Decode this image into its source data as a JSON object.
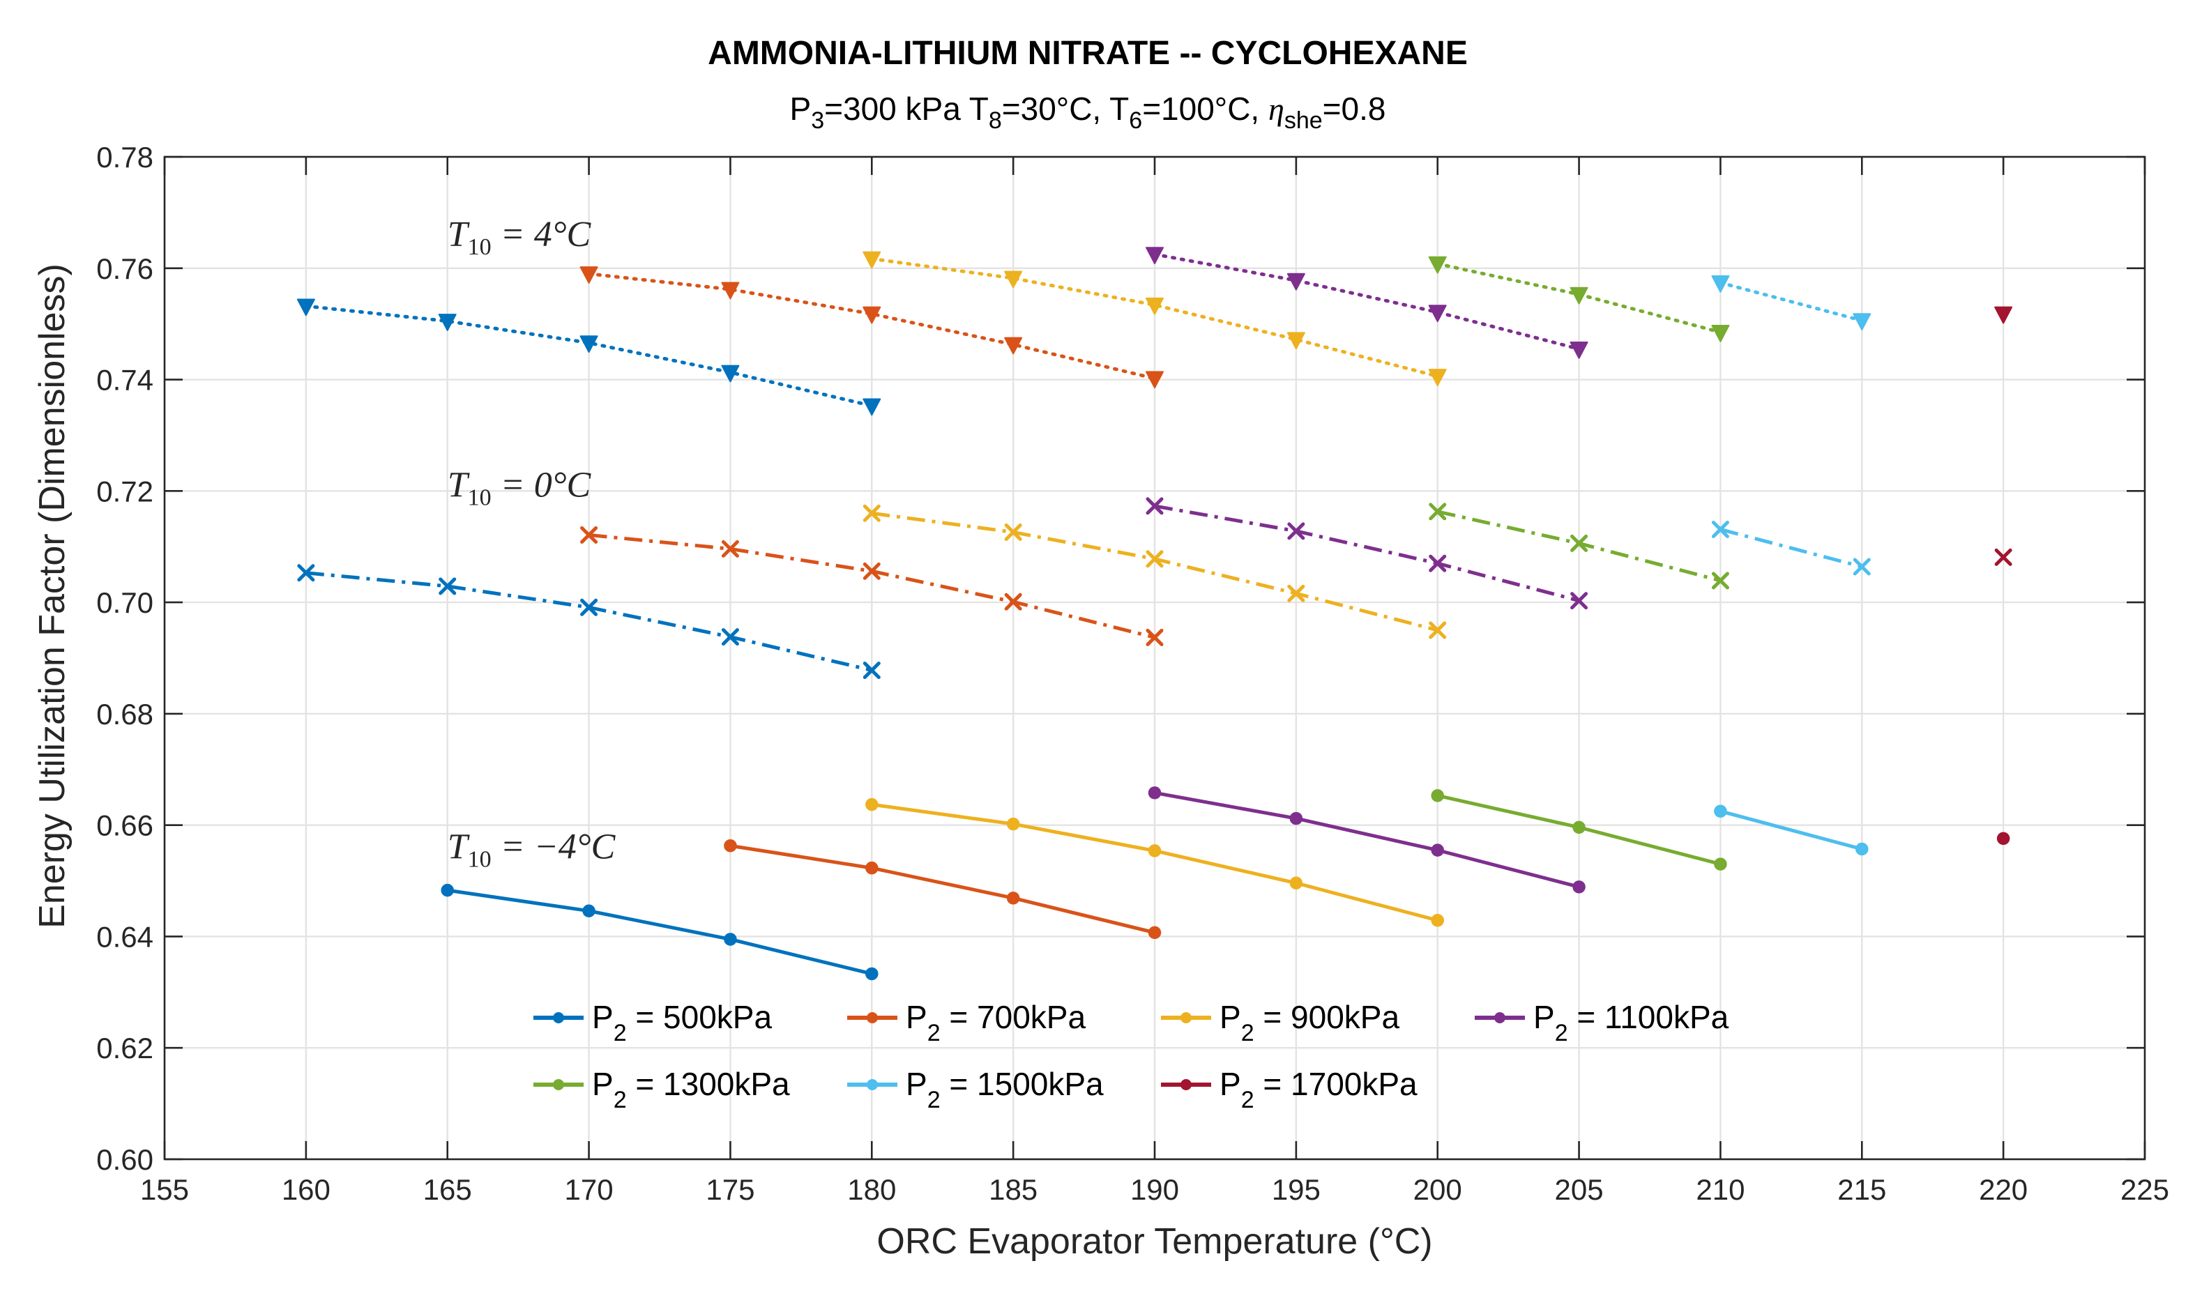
{
  "chart_data": {
    "type": "line",
    "title": "AMMONIA-LITHIUM NITRATE -- CYCLOHEXANE",
    "subtitle": {
      "p3_main": "P",
      "p3_sub": "3",
      "p3_rest": "=300 kPa T",
      "t8_sub": "8",
      "t8_rest": "=30°C, T",
      "t6_sub": "6",
      "t6_rest": "=100°C, ",
      "eta": "η",
      "eta_sub": "she",
      "eta_rest": "=0.8"
    },
    "xlabel": "ORC Evaporator Temperature (°C)",
    "ylabel": "Energy Utilization Factor (Dimensionless)",
    "xlim": [
      155,
      225
    ],
    "ylim": [
      0.6,
      0.78
    ],
    "xticks": [
      "155",
      "160",
      "165",
      "170",
      "175",
      "180",
      "185",
      "190",
      "195",
      "200",
      "205",
      "210",
      "215",
      "220",
      "225"
    ],
    "yticks": [
      "0.60",
      "0.62",
      "0.64",
      "0.66",
      "0.68",
      "0.70",
      "0.72",
      "0.74",
      "0.76",
      "0.78"
    ],
    "grid": true,
    "legend_placement": "bottom-center",
    "annotations": [
      {
        "main": "T",
        "sub": "10",
        "rest": " = 4°C",
        "x": 165,
        "y": 0.764
      },
      {
        "main": "T",
        "sub": "10",
        "rest": " = 0°C",
        "x": 165,
        "y": 0.719
      },
      {
        "main": "T",
        "sub": "10",
        "rest": " = −4°C",
        "x": 165,
        "y": 0.654
      }
    ],
    "series": [
      {
        "name": "P2 = 500kPa",
        "label_main": "P",
        "label_sub": "2",
        "label_rest": " = 500kPa",
        "color": "#0072BD",
        "curves": {
          "t10_4": {
            "x": [
              160,
              165,
              170,
              175,
              180
            ],
            "y": [
              0.7532,
              0.7505,
              0.7466,
              0.7413,
              0.7353
            ]
          },
          "t10_0": {
            "x": [
              160,
              165,
              170,
              175,
              180
            ],
            "y": [
              0.7053,
              0.7029,
              0.6991,
              0.6938,
              0.6878
            ]
          },
          "t10_m4": {
            "x": [
              165,
              170,
              175,
              180
            ],
            "y": [
              0.6483,
              0.6446,
              0.6395,
              0.6333
            ]
          }
        }
      },
      {
        "name": "P2 = 700kPa",
        "label_main": "P",
        "label_sub": "2",
        "label_rest": " = 700kPa",
        "color": "#D95319",
        "curves": {
          "t10_4": {
            "x": [
              170,
              175,
              180,
              185,
              190
            ],
            "y": [
              0.759,
              0.7562,
              0.7518,
              0.7463,
              0.7402
            ]
          },
          "t10_0": {
            "x": [
              170,
              175,
              180,
              185,
              190
            ],
            "y": [
              0.7121,
              0.7096,
              0.7056,
              0.7001,
              0.6937
            ]
          },
          "t10_m4": {
            "x": [
              175,
              180,
              185,
              190
            ],
            "y": [
              0.6563,
              0.6523,
              0.6469,
              0.6407
            ]
          }
        }
      },
      {
        "name": "P2 = 900kPa",
        "label_main": "P",
        "label_sub": "2",
        "label_rest": " = 900kPa",
        "color": "#EDB120",
        "curves": {
          "t10_4": {
            "x": [
              180,
              185,
              190,
              195,
              200
            ],
            "y": [
              0.7617,
              0.7582,
              0.7534,
              0.7472,
              0.7406
            ]
          },
          "t10_0": {
            "x": [
              180,
              185,
              190,
              195,
              200
            ],
            "y": [
              0.716,
              0.7126,
              0.7078,
              0.7016,
              0.695
            ]
          },
          "t10_m4": {
            "x": [
              180,
              185,
              190,
              195,
              200
            ],
            "y": [
              0.6637,
              0.6602,
              0.6554,
              0.6496,
              0.6429
            ]
          }
        }
      },
      {
        "name": "P2 = 1100kPa",
        "label_main": "P",
        "label_sub": "2",
        "label_rest": " = 1100kPa",
        "color": "#7E2F8E",
        "curves": {
          "t10_4": {
            "x": [
              190,
              195,
              200,
              205
            ],
            "y": [
              0.7625,
              0.7578,
              0.7521,
              0.7455
            ]
          },
          "t10_0": {
            "x": [
              190,
              195,
              200,
              205
            ],
            "y": [
              0.7173,
              0.7128,
              0.707,
              0.7003
            ]
          },
          "t10_m4": {
            "x": [
              190,
              195,
              200,
              205
            ],
            "y": [
              0.6658,
              0.6612,
              0.6555,
              0.6489
            ]
          }
        }
      },
      {
        "name": "P2 = 1300kPa",
        "label_main": "P",
        "label_sub": "2",
        "label_rest": " = 1300kPa",
        "color": "#77AC30",
        "curves": {
          "t10_4": {
            "x": [
              200,
              205,
              210
            ],
            "y": [
              0.7608,
              0.7553,
              0.7485
            ]
          },
          "t10_0": {
            "x": [
              200,
              205,
              210
            ],
            "y": [
              0.7163,
              0.7106,
              0.7039
            ]
          },
          "t10_m4": {
            "x": [
              200,
              205,
              210
            ],
            "y": [
              0.6653,
              0.6596,
              0.653
            ]
          }
        }
      },
      {
        "name": "P2 = 1500kPa",
        "label_main": "P",
        "label_sub": "2",
        "label_rest": " = 1500kPa",
        "color": "#4DBEEE",
        "curves": {
          "t10_4": {
            "x": [
              210,
              215
            ],
            "y": [
              0.7574,
              0.7506
            ]
          },
          "t10_0": {
            "x": [
              210,
              215
            ],
            "y": [
              0.7131,
              0.7064
            ]
          },
          "t10_m4": {
            "x": [
              210,
              215
            ],
            "y": [
              0.6625,
              0.6557
            ]
          }
        }
      },
      {
        "name": "P2 = 1700kPa",
        "label_main": "P",
        "label_sub": "2",
        "label_rest": " = 1700kPa",
        "color": "#A2142F",
        "curves": {
          "t10_4": {
            "x": [
              220
            ],
            "y": [
              0.7518
            ]
          },
          "t10_0": {
            "x": [
              220
            ],
            "y": [
              0.7081
            ]
          },
          "t10_m4": {
            "x": [
              220
            ],
            "y": [
              0.6576
            ]
          }
        }
      }
    ]
  }
}
